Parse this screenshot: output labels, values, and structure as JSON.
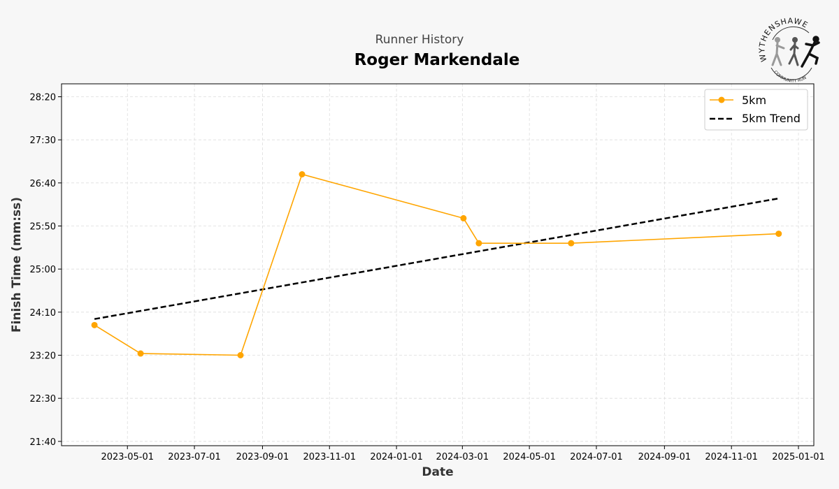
{
  "header": {
    "suptitle": "Runner History",
    "title": "Roger Markendale"
  },
  "logo": {
    "text": "WYTHENSHAWE",
    "subtext": "COMMUNITY RUN"
  },
  "chart_data": {
    "type": "line",
    "title": "Roger Markendale",
    "xlabel": "Date",
    "ylabel": "Finish Time (mm:ss)",
    "xlim": [
      "2023-03-02",
      "2025-01-15"
    ],
    "ylim": [
      "21:35",
      "28:35"
    ],
    "x_ticks": [
      "2023-05-01",
      "2023-07-01",
      "2023-09-01",
      "2023-11-01",
      "2024-01-01",
      "2024-03-01",
      "2024-05-01",
      "2024-07-01",
      "2024-09-01",
      "2024-11-01",
      "2025-01-01"
    ],
    "y_ticks": [
      "21:40",
      "22:30",
      "23:20",
      "24:10",
      "25:00",
      "25:50",
      "26:40",
      "27:30",
      "28:20"
    ],
    "grid": true,
    "legend_position": "top-right",
    "series": [
      {
        "name": "5km",
        "color": "#FFA500",
        "style": "solid-markers",
        "x": [
          "2023-04-01",
          "2023-05-13",
          "2023-08-12",
          "2023-10-07",
          "2024-03-02",
          "2024-03-16",
          "2024-06-08",
          "2024-12-14"
        ],
        "y": [
          "23:55",
          "23:22",
          "23:20",
          "26:50",
          "25:59",
          "25:30",
          "25:30",
          "25:41"
        ]
      },
      {
        "name": "5km Trend",
        "color": "#000000",
        "style": "dashed",
        "x": [
          "2023-04-01",
          "2024-12-14"
        ],
        "y": [
          "24:02",
          "26:22"
        ]
      }
    ]
  }
}
